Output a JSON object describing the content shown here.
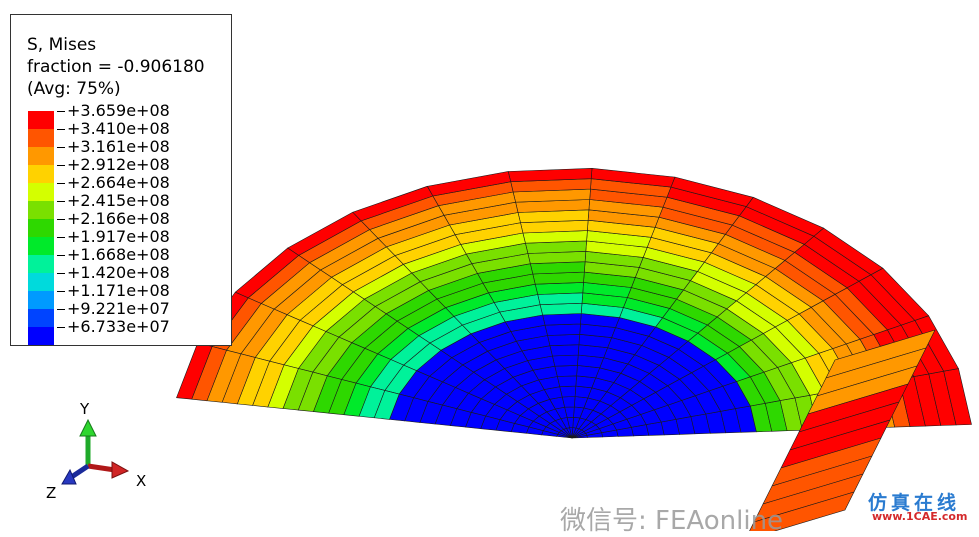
{
  "legend": {
    "title": "S, Mises",
    "fraction": "fraction = -0.906180",
    "avg": "(Avg: 75%)",
    "labels": [
      "+3.659e+08",
      "+3.410e+08",
      "+3.161e+08",
      "+2.912e+08",
      "+2.664e+08",
      "+2.415e+08",
      "+2.166e+08",
      "+1.917e+08",
      "+1.668e+08",
      "+1.420e+08",
      "+1.171e+08",
      "+9.221e+07",
      "+6.733e+07"
    ],
    "colors": [
      "#ff0000",
      "#ff5500",
      "#ff9800",
      "#ffd200",
      "#d4ff00",
      "#7ae000",
      "#2ed800",
      "#00ea2a",
      "#00f29a",
      "#00dadc",
      "#009aff",
      "#0044ff",
      "#0000ff"
    ]
  },
  "triad": {
    "y": "Y",
    "x": "X",
    "z": "Z"
  },
  "watermark": {
    "text": "微信号: FEAonline",
    "logo_cn": "仿真在线",
    "logo_url": "www.1CAE.com"
  }
}
